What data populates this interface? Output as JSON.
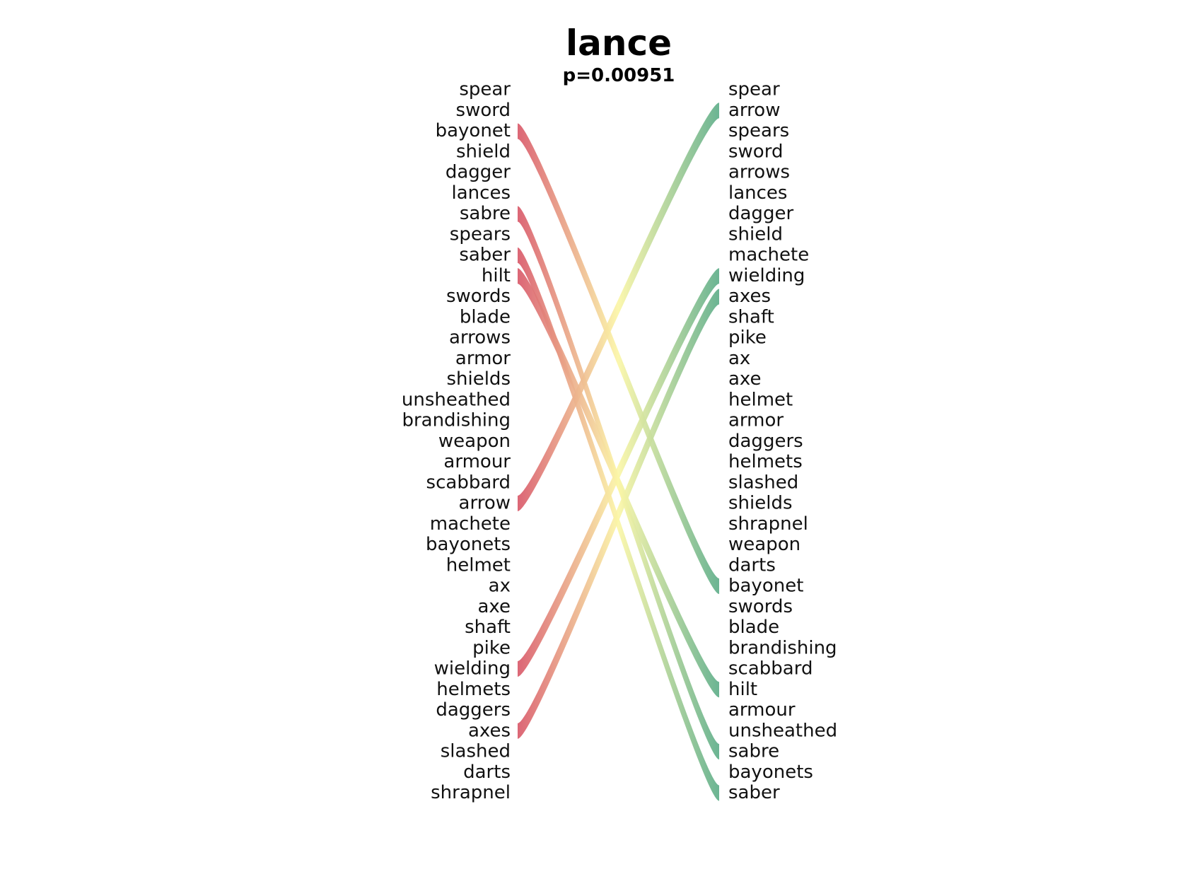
{
  "title": "lance",
  "subtitle": "p=0.00951",
  "colors": {
    "left_start": "#d9596a",
    "mid": "#fbf6a7",
    "right_end": "#5fae8a"
  },
  "left_words": [
    "spear",
    "sword",
    "bayonet",
    "shield",
    "dagger",
    "lances",
    "sabre",
    "spears",
    "saber",
    "hilt",
    "swords",
    "blade",
    "arrows",
    "armor",
    "shields",
    "unsheathed",
    "brandishing",
    "weapon",
    "armour",
    "scabbard",
    "arrow",
    "machete",
    "bayonets",
    "helmet",
    "ax",
    "axe",
    "shaft",
    "pike",
    "wielding",
    "helmets",
    "daggers",
    "axes",
    "slashed",
    "darts",
    "shrapnel"
  ],
  "right_words": [
    "spear",
    "arrow",
    "spears",
    "sword",
    "arrows",
    "lances",
    "dagger",
    "shield",
    "machete",
    "wielding",
    "axes",
    "shaft",
    "pike",
    "ax",
    "axe",
    "helmet",
    "armor",
    "daggers",
    "helmets",
    "slashed",
    "shields",
    "shrapnel",
    "weapon",
    "darts",
    "bayonet",
    "swords",
    "blade",
    "brandishing",
    "scabbard",
    "hilt",
    "armour",
    "unsheathed",
    "sabre",
    "bayonets",
    "saber"
  ],
  "links": [
    {
      "word": "bayonet",
      "from": 2,
      "to": 24
    },
    {
      "word": "sabre",
      "from": 6,
      "to": 32
    },
    {
      "word": "saber",
      "from": 8,
      "to": 34
    },
    {
      "word": "hilt",
      "from": 9,
      "to": 29
    },
    {
      "word": "arrow",
      "from": 20,
      "to": 1
    },
    {
      "word": "wielding",
      "from": 28,
      "to": 9
    },
    {
      "word": "axes",
      "from": 31,
      "to": 10
    }
  ]
}
